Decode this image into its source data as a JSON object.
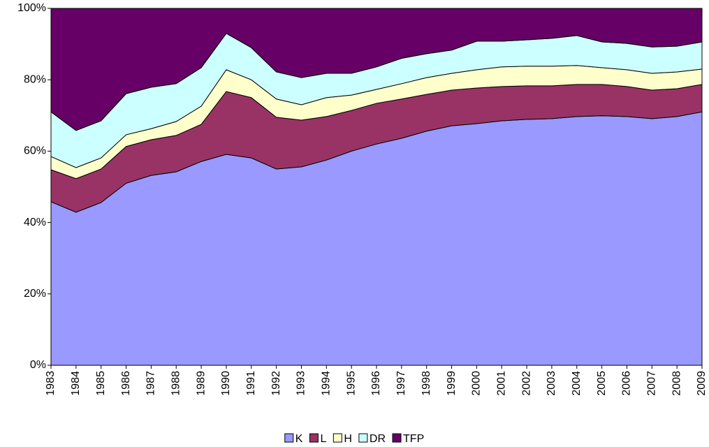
{
  "chart_data": {
    "type": "stacked_area",
    "categories": [
      "1983",
      "1984",
      "1985",
      "1986",
      "1987",
      "1988",
      "1989",
      "1990",
      "1991",
      "1992",
      "1993",
      "1994",
      "1995",
      "1996",
      "1997",
      "1998",
      "1999",
      "2000",
      "2001",
      "2002",
      "2003",
      "2004",
      "2005",
      "2006",
      "2007",
      "2008",
      "2009"
    ],
    "series": [
      {
        "name": "K",
        "color": "#9999ff",
        "values": [
          45.8,
          42.9,
          45.6,
          51,
          53.2,
          54.2,
          57.1,
          59.1,
          58.1,
          55,
          55.6,
          57.5,
          60,
          62,
          63.6,
          65.6,
          67.1,
          67.7,
          68.5,
          68.9,
          69.1,
          69.7,
          69.9,
          69.7,
          69.1,
          69.7,
          71
        ]
      },
      {
        "name": "L",
        "color": "#993366",
        "values": [
          9,
          9.4,
          9.4,
          10.3,
          10,
          10.2,
          10.4,
          17.6,
          16.9,
          14.5,
          13.1,
          12.2,
          11.4,
          11.4,
          11,
          10.3,
          10,
          10,
          9.6,
          9.4,
          9.2,
          9,
          8.8,
          8.4,
          8,
          7.8,
          7.7
        ]
      },
      {
        "name": "H",
        "color": "#ffffcc",
        "values": [
          3.7,
          3.1,
          3.1,
          3.3,
          3.1,
          3.9,
          5.1,
          6.1,
          5,
          5.1,
          4.3,
          5.3,
          4.3,
          3.9,
          4.3,
          4.7,
          4.7,
          5.1,
          5.5,
          5.5,
          5.5,
          5.3,
          4.7,
          4.7,
          4.7,
          4.7,
          4.3
        ]
      },
      {
        "name": "DR",
        "color": "#ccffff",
        "values": [
          12.5,
          10.4,
          10.4,
          11.5,
          11.6,
          10.6,
          10.8,
          10.2,
          9,
          7.6,
          7.6,
          6.8,
          6.1,
          6.3,
          7.1,
          6.7,
          6.5,
          8,
          7.2,
          7.4,
          7.8,
          8.4,
          7.2,
          7.4,
          7.4,
          7.2,
          7.6
        ]
      },
      {
        "name": "TFP",
        "color": "#660066",
        "values": [
          29,
          34.2,
          31.5,
          23.9,
          22.1,
          21.1,
          16.6,
          7,
          11,
          17.8,
          19.4,
          18.2,
          18.2,
          16.4,
          14,
          12.7,
          11.7,
          9.2,
          9.2,
          8.8,
          8.4,
          7.6,
          9.4,
          9.8,
          10.8,
          10.6,
          9.4
        ]
      }
    ],
    "ylim": [
      0,
      100
    ],
    "yticks": [
      {
        "value": 0,
        "label": "0%"
      },
      {
        "value": 20,
        "label": "20%"
      },
      {
        "value": 40,
        "label": "40%"
      },
      {
        "value": 60,
        "label": "60%"
      },
      {
        "value": 80,
        "label": "80%"
      },
      {
        "value": 100,
        "label": "100%"
      }
    ],
    "legend": "bottom"
  }
}
